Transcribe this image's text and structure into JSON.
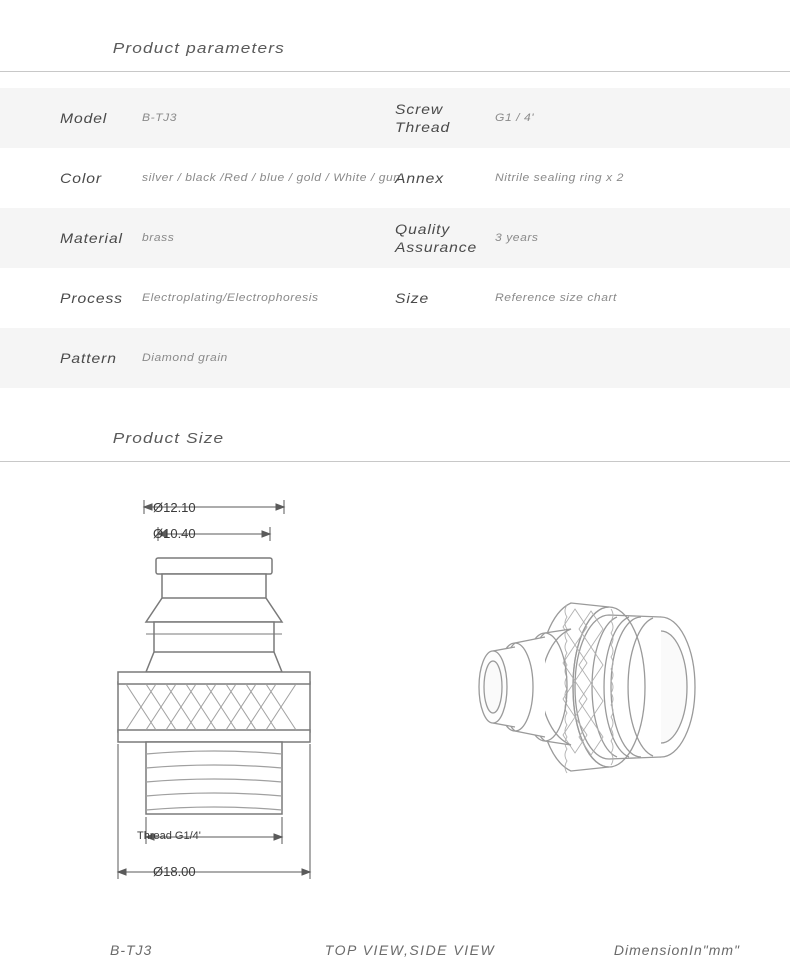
{
  "sections": {
    "parameters_title": "Product parameters",
    "size_title": "Product Size"
  },
  "parameters": {
    "rows": [
      {
        "shaded": true,
        "left_label": "Model",
        "left_value": "B-TJ3",
        "right_label": "Screw\nThread",
        "right_value": "G1 / 4'"
      },
      {
        "shaded": false,
        "left_label": "Color",
        "left_value": "silver / black /Red / blue / gold / White / gun",
        "right_label": "Annex",
        "right_value": "Nitrile sealing ring  x 2"
      },
      {
        "shaded": true,
        "left_label": "Material",
        "left_value": "brass",
        "right_label": "Quality\nAssurance",
        "right_value": "3 years"
      },
      {
        "shaded": false,
        "left_label": "Process",
        "left_value": "Electroplating/Electrophoresis",
        "right_label": "Size",
        "right_value": "Reference size chart"
      },
      {
        "shaded": true,
        "left_label": "Pattern",
        "left_value": "Diamond grain",
        "right_label": "",
        "right_value": ""
      }
    ]
  },
  "diagram": {
    "dimensions": {
      "d1": "Ø12.10",
      "d2": "Ø10.40",
      "thread": "Thread G1/4'",
      "d3": "Ø18.00"
    },
    "colors": {
      "line": "#8a8a8a",
      "line_dark": "#4a4a4a",
      "fill": "#ffffff"
    }
  },
  "footer": {
    "left": "B-TJ3",
    "center": "TOP VIEW,SIDE VIEW",
    "right": "DimensionIn\"mm\""
  },
  "styling": {
    "bg_color": "#ffffff",
    "shaded_bg": "#f5f5f5",
    "label_color": "#4a4a4a",
    "value_color": "#8a8a8a",
    "divider_color": "#c8c8c8"
  }
}
